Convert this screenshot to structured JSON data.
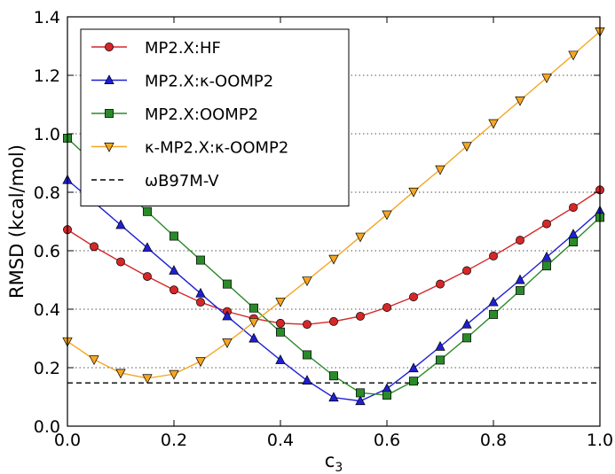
{
  "chart_data": {
    "type": "line",
    "title": "",
    "xlabel": "c",
    "xlabel_subscript": "3",
    "ylabel": "RMSD (kcal/mol)",
    "xlim": [
      0.0,
      1.0
    ],
    "ylim": [
      0.0,
      1.4
    ],
    "x_ticks": [
      "0.0",
      "0.2",
      "0.4",
      "0.6",
      "0.8",
      "1.0"
    ],
    "y_ticks": [
      "0.0",
      "0.2",
      "0.4",
      "0.6",
      "0.8",
      "1.0",
      "1.2",
      "1.4"
    ],
    "grid": "horizontal dotted",
    "legend_position": "top-left",
    "x": [
      0.0,
      0.05,
      0.1,
      0.15,
      0.2,
      0.25,
      0.3,
      0.35,
      0.4,
      0.45,
      0.5,
      0.55,
      0.6,
      0.65,
      0.7,
      0.75,
      0.8,
      0.85,
      0.9,
      0.95,
      1.0
    ],
    "series": [
      {
        "name": "MP2.X:HF",
        "color": "#d62728",
        "marker": "circle",
        "values": [
          0.672,
          0.614,
          0.562,
          0.512,
          0.466,
          0.424,
          0.392,
          0.368,
          0.352,
          0.348,
          0.358,
          0.376,
          0.406,
          0.442,
          0.486,
          0.532,
          0.582,
          0.636,
          0.692,
          0.748,
          0.808
        ]
      },
      {
        "name": "MP2.X:κ-OOMP2",
        "color": "#1f1fd6",
        "marker": "triangle-up",
        "values": [
          0.842,
          0.766,
          0.688,
          0.61,
          0.532,
          0.454,
          0.376,
          0.3,
          0.226,
          0.156,
          0.098,
          0.086,
          0.128,
          0.198,
          0.272,
          0.348,
          0.424,
          0.5,
          0.578,
          0.656,
          0.736
        ]
      },
      {
        "name": "MP2.X:OOMP2",
        "color": "#2a8a2a",
        "marker": "square",
        "values": [
          0.985,
          0.9,
          0.816,
          0.734,
          0.65,
          0.568,
          0.486,
          0.404,
          0.322,
          0.244,
          0.172,
          0.114,
          0.106,
          0.154,
          0.226,
          0.302,
          0.382,
          0.464,
          0.548,
          0.63,
          0.714
        ]
      },
      {
        "name": "κ-MP2.X:κ-OOMP2",
        "color": "#f5a623",
        "marker": "triangle-down",
        "values": [
          0.29,
          0.228,
          0.182,
          0.164,
          0.178,
          0.222,
          0.286,
          0.356,
          0.426,
          0.498,
          0.572,
          0.648,
          0.724,
          0.802,
          0.878,
          0.958,
          1.036,
          1.114,
          1.192,
          1.27,
          1.35
        ]
      }
    ],
    "reference_line": {
      "name": "ωB97M-V",
      "value": 0.148,
      "color": "#000000",
      "style": "dashed"
    }
  }
}
